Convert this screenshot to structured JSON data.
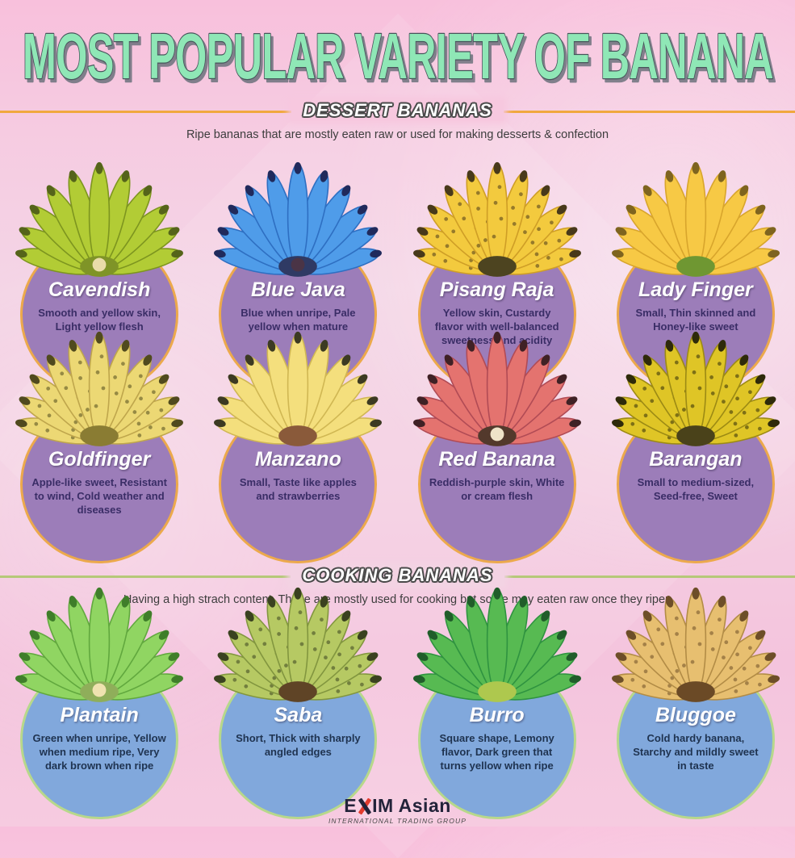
{
  "title": "MOST POPULAR VARIETY OF BANANA",
  "theme": {
    "title_fill": "#8fe7b6",
    "title_outline": "#46545a",
    "background_pink": "#f6c9e0"
  },
  "sections": [
    {
      "heading": "DESSERT BANANAS",
      "description": "Ripe bananas that are mostly eaten raw or used for making desserts & confection",
      "accent_color": "#f0a83e",
      "circle_color": "#9c7db9",
      "circle_border": "#eca94c",
      "text_color": "#3a2d66",
      "varieties": [
        {
          "name": "Cavendish",
          "description": "Smooth and yellow skin, Light yellow flesh",
          "banana_color": "#b2cc35",
          "banana_shade": "#7d951f",
          "tip_color": "#55641a",
          "hub_color": "#7f9427",
          "hub_center": "#e9dca8",
          "spotted": false
        },
        {
          "name": "Blue Java",
          "description": "Blue when unripe, Pale yellow when mature",
          "banana_color": "#4f9ce9",
          "banana_shade": "#2e6fc2",
          "tip_color": "#202a5c",
          "hub_color": "#2f3a64",
          "hub_center": "#4a3446",
          "spotted": false
        },
        {
          "name": "Pisang Raja",
          "description": "Yellow skin, Custardy flavor with well-balanced sweetness and acidity",
          "banana_color": "#f3ca3e",
          "banana_shade": "#cf9e26",
          "tip_color": "#48391a",
          "hub_color": "#4d4420",
          "spotted": true
        },
        {
          "name": "Lady Finger",
          "description": "Small, Thin skinned and Honey-like sweet",
          "banana_color": "#f7c945",
          "banana_shade": "#d8a52c",
          "tip_color": "#7e641f",
          "hub_color": "#6f9732",
          "spotted": false
        },
        {
          "name": "Goldfinger",
          "description": "Apple-like sweet, Resistant to wind, Cold weather and diseases",
          "banana_color": "#ecd874",
          "banana_shade": "#bfa64c",
          "tip_color": "#504a1e",
          "hub_color": "#8a7c33",
          "spotted": true
        },
        {
          "name": "Manzano",
          "description": "Small, Taste like apples and strawberries",
          "banana_color": "#f4df7d",
          "banana_shade": "#d0b753",
          "tip_color": "#3c3a22",
          "hub_color": "#8a5a3a",
          "spotted": false
        },
        {
          "name": "Red Banana",
          "description": "Reddish-purple skin, White or cream flesh",
          "banana_color": "#e4736f",
          "banana_shade": "#b14b55",
          "tip_color": "#3f2125",
          "hub_color": "#53392c",
          "hub_center": "#efe3c8",
          "spotted": false
        },
        {
          "name": "Barangan",
          "description": "Small to medium-sized, Seed-free, Sweet",
          "banana_color": "#dfc526",
          "banana_shade": "#9c8a14",
          "tip_color": "#2e2a0a",
          "hub_color": "#4a421a",
          "spotted": true
        }
      ]
    },
    {
      "heading": "COOKING BANANAS",
      "description": "Having a high strach content, These are mostly used for cooking but some may eaten raw once they ripen",
      "accent_color": "#b5c878",
      "circle_color": "#81a8dc",
      "circle_border": "#b7d88b",
      "text_color": "#1f3350",
      "varieties": [
        {
          "name": "Plantain",
          "description": "Green when unripe, Yellow when medium ripe, Very dark brown when ripe",
          "banana_color": "#90d562",
          "banana_shade": "#61a83e",
          "tip_color": "#3f7e2a",
          "hub_color": "#8fae5a",
          "hub_center": "#efe2b0",
          "spotted": false
        },
        {
          "name": "Saba",
          "description": "Short, Thick with sharply angled edges",
          "banana_color": "#b6c963",
          "banana_shade": "#82963f",
          "tip_color": "#3a4220",
          "hub_color": "#5f4426",
          "spotted": true
        },
        {
          "name": "Burro",
          "description": "Square shape, Lemony flavor, Dark green that turns yellow when ripe",
          "banana_color": "#57ba52",
          "banana_shade": "#2f9340",
          "tip_color": "#205d2a",
          "hub_color": "#aec84e",
          "spotted": false
        },
        {
          "name": "Bluggoe",
          "description": "Cold hardy banana, Starchy and mildly sweet in taste",
          "banana_color": "#e7bf70",
          "banana_shade": "#b28c46",
          "tip_color": "#6d4e28",
          "hub_color": "#6b4a26",
          "spotted": true
        }
      ]
    }
  ],
  "footer": {
    "brand_pre": "E",
    "brand_post": "IM Asian",
    "brand_color": "#23233a",
    "accent_red": "#e23b2e",
    "tagline": "INTERNATIONAL TRADING GROUP"
  }
}
